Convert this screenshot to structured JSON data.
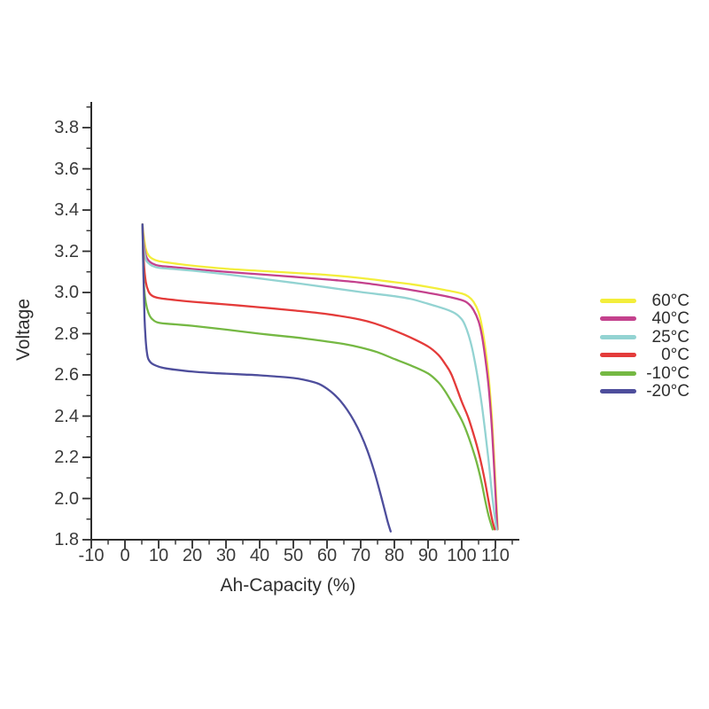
{
  "figure": {
    "background_color": "#ffffff",
    "axis_color": "#2d2d2d",
    "tick_label_color": "#3a3a3a"
  },
  "chart_data": {
    "type": "line",
    "title": "",
    "xlabel": "Ah-Capacity (%)",
    "ylabel": "Voltage",
    "xlim": [
      -10,
      115
    ],
    "ylim": [
      1.8,
      3.9
    ],
    "x_ticks": [
      -10,
      0,
      10,
      20,
      30,
      40,
      50,
      60,
      70,
      80,
      90,
      100,
      110
    ],
    "x_minor_tick_step": 5,
    "y_ticks": [
      1.8,
      2.0,
      2.2,
      2.4,
      2.6,
      2.8,
      3.0,
      3.2,
      3.4,
      3.6,
      3.8
    ],
    "y_minor_tick_step": 0.1,
    "grid": false,
    "legend_position": "right-outside",
    "series": [
      {
        "name": "60°C",
        "color": "#f3ee3b",
        "points": [
          [
            5.2,
            3.33
          ],
          [
            5.6,
            3.27
          ],
          [
            6.2,
            3.21
          ],
          [
            7,
            3.18
          ],
          [
            8,
            3.165
          ],
          [
            10,
            3.152
          ],
          [
            15,
            3.14
          ],
          [
            20,
            3.13
          ],
          [
            30,
            3.115
          ],
          [
            40,
            3.105
          ],
          [
            50,
            3.095
          ],
          [
            60,
            3.085
          ],
          [
            70,
            3.07
          ],
          [
            80,
            3.05
          ],
          [
            85,
            3.04
          ],
          [
            90,
            3.027
          ],
          [
            95,
            3.012
          ],
          [
            100,
            2.995
          ],
          [
            102,
            2.98
          ],
          [
            103.5,
            2.955
          ],
          [
            105,
            2.905
          ],
          [
            106,
            2.835
          ],
          [
            107,
            2.73
          ],
          [
            108,
            2.59
          ],
          [
            109,
            2.38
          ],
          [
            110,
            2.08
          ],
          [
            110.7,
            1.85
          ]
        ]
      },
      {
        "name": "40°C",
        "color": "#c4418d",
        "points": [
          [
            5.2,
            3.33
          ],
          [
            5.6,
            3.24
          ],
          [
            6.2,
            3.18
          ],
          [
            7,
            3.155
          ],
          [
            8,
            3.142
          ],
          [
            10,
            3.13
          ],
          [
            15,
            3.122
          ],
          [
            20,
            3.114
          ],
          [
            30,
            3.1
          ],
          [
            40,
            3.088
          ],
          [
            50,
            3.076
          ],
          [
            60,
            3.063
          ],
          [
            70,
            3.048
          ],
          [
            80,
            3.025
          ],
          [
            85,
            3.012
          ],
          [
            90,
            2.998
          ],
          [
            95,
            2.983
          ],
          [
            100,
            2.963
          ],
          [
            102,
            2.945
          ],
          [
            103.5,
            2.915
          ],
          [
            105,
            2.86
          ],
          [
            106,
            2.79
          ],
          [
            107,
            2.68
          ],
          [
            108,
            2.54
          ],
          [
            109,
            2.33
          ],
          [
            110,
            2.03
          ],
          [
            110.6,
            1.85
          ]
        ]
      },
      {
        "name": "25°C",
        "color": "#93d3d2",
        "points": [
          [
            5.2,
            3.33
          ],
          [
            5.6,
            3.22
          ],
          [
            6.2,
            3.16
          ],
          [
            7,
            3.142
          ],
          [
            8,
            3.13
          ],
          [
            10,
            3.12
          ],
          [
            15,
            3.113
          ],
          [
            20,
            3.106
          ],
          [
            30,
            3.088
          ],
          [
            40,
            3.068
          ],
          [
            50,
            3.047
          ],
          [
            60,
            3.025
          ],
          [
            70,
            3.002
          ],
          [
            80,
            2.982
          ],
          [
            85,
            2.968
          ],
          [
            90,
            2.945
          ],
          [
            95,
            2.92
          ],
          [
            98,
            2.899
          ],
          [
            100,
            2.87
          ],
          [
            101,
            2.84
          ],
          [
            102,
            2.795
          ],
          [
            103,
            2.735
          ],
          [
            104,
            2.655
          ],
          [
            105,
            2.56
          ],
          [
            106,
            2.45
          ],
          [
            107,
            2.32
          ],
          [
            108,
            2.18
          ],
          [
            109,
            2.02
          ],
          [
            110,
            1.89
          ],
          [
            110.4,
            1.85
          ]
        ]
      },
      {
        "name": "0°C",
        "color": "#e43b3a",
        "points": [
          [
            5.2,
            3.33
          ],
          [
            5.6,
            3.15
          ],
          [
            6.2,
            3.05
          ],
          [
            7,
            3.005
          ],
          [
            8,
            2.985
          ],
          [
            10,
            2.973
          ],
          [
            15,
            2.963
          ],
          [
            20,
            2.955
          ],
          [
            30,
            2.942
          ],
          [
            40,
            2.928
          ],
          [
            50,
            2.913
          ],
          [
            60,
            2.895
          ],
          [
            70,
            2.868
          ],
          [
            75,
            2.845
          ],
          [
            80,
            2.815
          ],
          [
            85,
            2.78
          ],
          [
            90,
            2.738
          ],
          [
            93,
            2.698
          ],
          [
            95,
            2.655
          ],
          [
            97,
            2.6
          ],
          [
            100,
            2.47
          ],
          [
            102,
            2.39
          ],
          [
            104,
            2.285
          ],
          [
            105,
            2.225
          ],
          [
            106,
            2.155
          ],
          [
            107,
            2.075
          ],
          [
            108,
            1.985
          ],
          [
            109,
            1.9
          ],
          [
            109.8,
            1.85
          ]
        ]
      },
      {
        "name": "-10°C",
        "color": "#75b843",
        "points": [
          [
            5.2,
            3.33
          ],
          [
            5.6,
            3.05
          ],
          [
            6.2,
            2.95
          ],
          [
            7,
            2.9
          ],
          [
            8,
            2.872
          ],
          [
            10,
            2.853
          ],
          [
            15,
            2.845
          ],
          [
            20,
            2.838
          ],
          [
            30,
            2.82
          ],
          [
            40,
            2.8
          ],
          [
            50,
            2.783
          ],
          [
            55,
            2.773
          ],
          [
            60,
            2.762
          ],
          [
            65,
            2.75
          ],
          [
            70,
            2.733
          ],
          [
            75,
            2.71
          ],
          [
            80,
            2.677
          ],
          [
            85,
            2.645
          ],
          [
            90,
            2.607
          ],
          [
            93,
            2.565
          ],
          [
            95,
            2.522
          ],
          [
            97,
            2.468
          ],
          [
            100,
            2.38
          ],
          [
            102,
            2.3
          ],
          [
            104,
            2.2
          ],
          [
            105,
            2.14
          ],
          [
            106,
            2.07
          ],
          [
            107,
            1.988
          ],
          [
            108,
            1.915
          ],
          [
            109.2,
            1.85
          ]
        ]
      },
      {
        "name": "-20°C",
        "color": "#4e4e9c",
        "points": [
          [
            5.2,
            3.33
          ],
          [
            5.5,
            3.08
          ],
          [
            5.8,
            2.88
          ],
          [
            6.2,
            2.76
          ],
          [
            6.6,
            2.7
          ],
          [
            7,
            2.675
          ],
          [
            8,
            2.655
          ],
          [
            10,
            2.64
          ],
          [
            12,
            2.632
          ],
          [
            15,
            2.625
          ],
          [
            20,
            2.616
          ],
          [
            25,
            2.61
          ],
          [
            30,
            2.606
          ],
          [
            35,
            2.602
          ],
          [
            40,
            2.598
          ],
          [
            45,
            2.592
          ],
          [
            50,
            2.585
          ],
          [
            53,
            2.577
          ],
          [
            56,
            2.565
          ],
          [
            58,
            2.553
          ],
          [
            60,
            2.533
          ],
          [
            62,
            2.507
          ],
          [
            64,
            2.473
          ],
          [
            66,
            2.43
          ],
          [
            68,
            2.377
          ],
          [
            70,
            2.312
          ],
          [
            72,
            2.232
          ],
          [
            74,
            2.133
          ],
          [
            75.5,
            2.045
          ],
          [
            77,
            1.952
          ],
          [
            78,
            1.888
          ],
          [
            78.9,
            1.84
          ]
        ]
      }
    ]
  }
}
